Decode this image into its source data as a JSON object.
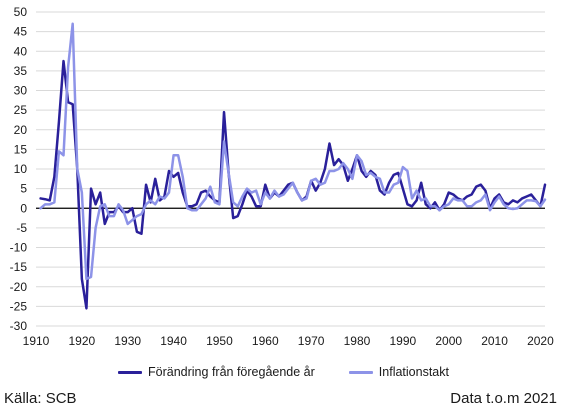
{
  "chart_data": {
    "type": "line",
    "title": "",
    "xlabel": "",
    "ylabel": "",
    "xlim": [
      1910,
      2021
    ],
    "ylim": [
      -30,
      50
    ],
    "x_ticks": [
      1910,
      1920,
      1930,
      1940,
      1950,
      1960,
      1970,
      1980,
      1990,
      2000,
      2010,
      2020
    ],
    "y_ticks": [
      50,
      45,
      40,
      35,
      30,
      25,
      20,
      15,
      10,
      5,
      0,
      -5,
      -10,
      -15,
      -20,
      -25,
      -30
    ],
    "grid": "horizontal",
    "legend_position": "bottom",
    "series": [
      {
        "name": "Förändring från föregående år",
        "color": "#2a209a",
        "points": [
          [
            1911,
            2.5
          ],
          [
            1912,
            2.3
          ],
          [
            1913,
            2
          ],
          [
            1914,
            8
          ],
          [
            1915,
            22
          ],
          [
            1916,
            37.5
          ],
          [
            1917,
            27
          ],
          [
            1918,
            26.5
          ],
          [
            1919,
            10
          ],
          [
            1920,
            -18
          ],
          [
            1921,
            -25.5
          ],
          [
            1922,
            5
          ],
          [
            1923,
            1
          ],
          [
            1924,
            4
          ],
          [
            1925,
            -4
          ],
          [
            1926,
            -1
          ],
          [
            1927,
            -1
          ],
          [
            1928,
            0.5
          ],
          [
            1929,
            -1
          ],
          [
            1930,
            -1
          ],
          [
            1931,
            0
          ],
          [
            1932,
            -6
          ],
          [
            1933,
            -6.5
          ],
          [
            1934,
            6
          ],
          [
            1935,
            1.5
          ],
          [
            1936,
            7.5
          ],
          [
            1937,
            2
          ],
          [
            1938,
            3
          ],
          [
            1939,
            9.5
          ],
          [
            1940,
            8
          ],
          [
            1941,
            9
          ],
          [
            1942,
            4
          ],
          [
            1943,
            0.5
          ],
          [
            1944,
            0.5
          ],
          [
            1945,
            1
          ],
          [
            1946,
            4
          ],
          [
            1947,
            4.5
          ],
          [
            1948,
            3
          ],
          [
            1949,
            2
          ],
          [
            1950,
            1.5
          ],
          [
            1951,
            24.5
          ],
          [
            1952,
            9
          ],
          [
            1953,
            -2.5
          ],
          [
            1954,
            -2
          ],
          [
            1955,
            1
          ],
          [
            1956,
            4.5
          ],
          [
            1957,
            3
          ],
          [
            1958,
            0.5
          ],
          [
            1959,
            0.5
          ],
          [
            1960,
            6
          ],
          [
            1961,
            2.5
          ],
          [
            1962,
            4
          ],
          [
            1963,
            3
          ],
          [
            1964,
            4.5
          ],
          [
            1965,
            6
          ],
          [
            1966,
            6.5
          ],
          [
            1967,
            4
          ],
          [
            1968,
            2
          ],
          [
            1969,
            3
          ],
          [
            1970,
            7
          ],
          [
            1971,
            4.5
          ],
          [
            1972,
            6.5
          ],
          [
            1973,
            10
          ],
          [
            1974,
            16.5
          ],
          [
            1975,
            11
          ],
          [
            1976,
            12.5
          ],
          [
            1977,
            11
          ],
          [
            1978,
            7
          ],
          [
            1979,
            10
          ],
          [
            1980,
            13.5
          ],
          [
            1981,
            9.5
          ],
          [
            1982,
            8
          ],
          [
            1983,
            9.5
          ],
          [
            1984,
            8.5
          ],
          [
            1985,
            4.5
          ],
          [
            1986,
            3.5
          ],
          [
            1987,
            6.5
          ],
          [
            1988,
            8.5
          ],
          [
            1989,
            9
          ],
          [
            1990,
            5
          ],
          [
            1991,
            1
          ],
          [
            1992,
            0.5
          ],
          [
            1993,
            2
          ],
          [
            1994,
            6.5
          ],
          [
            1995,
            1
          ],
          [
            1996,
            0
          ],
          [
            1997,
            1.5
          ],
          [
            1998,
            -0.5
          ],
          [
            1999,
            1
          ],
          [
            2000,
            4
          ],
          [
            2001,
            3.5
          ],
          [
            2002,
            2.5
          ],
          [
            2003,
            2
          ],
          [
            2004,
            3
          ],
          [
            2005,
            3.5
          ],
          [
            2006,
            5.5
          ],
          [
            2007,
            6
          ],
          [
            2008,
            4.5
          ],
          [
            2009,
            0
          ],
          [
            2010,
            2.5
          ],
          [
            2011,
            3.5
          ],
          [
            2012,
            1.5
          ],
          [
            2013,
            1
          ],
          [
            2014,
            2
          ],
          [
            2015,
            1.5
          ],
          [
            2016,
            2.5
          ],
          [
            2017,
            3
          ],
          [
            2018,
            3.5
          ],
          [
            2019,
            2
          ],
          [
            2020,
            0.5
          ],
          [
            2021,
            6
          ]
        ]
      },
      {
        "name": "Inflationstakt",
        "color": "#8d93e8",
        "points": [
          [
            1911,
            0
          ],
          [
            1912,
            1
          ],
          [
            1913,
            1
          ],
          [
            1914,
            1.5
          ],
          [
            1915,
            14.5
          ],
          [
            1916,
            13.5
          ],
          [
            1917,
            36
          ],
          [
            1918,
            47
          ],
          [
            1919,
            10
          ],
          [
            1920,
            4
          ],
          [
            1921,
            -18
          ],
          [
            1922,
            -17.5
          ],
          [
            1923,
            -5
          ],
          [
            1924,
            0.5
          ],
          [
            1925,
            1
          ],
          [
            1926,
            -2
          ],
          [
            1927,
            -2
          ],
          [
            1928,
            1
          ],
          [
            1929,
            -0.5
          ],
          [
            1930,
            -4
          ],
          [
            1931,
            -3
          ],
          [
            1932,
            -2
          ],
          [
            1933,
            -1.5
          ],
          [
            1934,
            1
          ],
          [
            1935,
            2
          ],
          [
            1936,
            1
          ],
          [
            1937,
            3
          ],
          [
            1938,
            2.5
          ],
          [
            1939,
            4
          ],
          [
            1940,
            13.5
          ],
          [
            1941,
            13.5
          ],
          [
            1942,
            8
          ],
          [
            1943,
            0
          ],
          [
            1944,
            -0.5
          ],
          [
            1945,
            -0.5
          ],
          [
            1946,
            1
          ],
          [
            1947,
            2.5
          ],
          [
            1948,
            5.5
          ],
          [
            1949,
            1.5
          ],
          [
            1950,
            1
          ],
          [
            1951,
            17
          ],
          [
            1952,
            9
          ],
          [
            1953,
            1.5
          ],
          [
            1954,
            0.5
          ],
          [
            1955,
            3
          ],
          [
            1956,
            5
          ],
          [
            1957,
            4
          ],
          [
            1958,
            4.5
          ],
          [
            1959,
            1
          ],
          [
            1960,
            4
          ],
          [
            1961,
            2.5
          ],
          [
            1962,
            4.5
          ],
          [
            1963,
            3
          ],
          [
            1964,
            3.5
          ],
          [
            1965,
            5
          ],
          [
            1966,
            6.5
          ],
          [
            1967,
            4
          ],
          [
            1968,
            2
          ],
          [
            1969,
            2.5
          ],
          [
            1970,
            7
          ],
          [
            1971,
            7.5
          ],
          [
            1972,
            6
          ],
          [
            1973,
            6.5
          ],
          [
            1974,
            9.5
          ],
          [
            1975,
            9.5
          ],
          [
            1976,
            10
          ],
          [
            1977,
            11.5
          ],
          [
            1978,
            10
          ],
          [
            1979,
            7.5
          ],
          [
            1980,
            13.5
          ],
          [
            1981,
            12
          ],
          [
            1982,
            8.5
          ],
          [
            1983,
            9
          ],
          [
            1984,
            8
          ],
          [
            1985,
            7.5
          ],
          [
            1986,
            4
          ],
          [
            1987,
            4
          ],
          [
            1988,
            6
          ],
          [
            1989,
            6.5
          ],
          [
            1990,
            10.5
          ],
          [
            1991,
            9.5
          ],
          [
            1992,
            2.5
          ],
          [
            1993,
            4.5
          ],
          [
            1994,
            2
          ],
          [
            1995,
            2.5
          ],
          [
            1996,
            0.5
          ],
          [
            1997,
            0.5
          ],
          [
            1998,
            -0.5
          ],
          [
            1999,
            0.5
          ],
          [
            2000,
            1
          ],
          [
            2001,
            2.5
          ],
          [
            2002,
            2
          ],
          [
            2003,
            2
          ],
          [
            2004,
            0.5
          ],
          [
            2005,
            0.5
          ],
          [
            2006,
            1.5
          ],
          [
            2007,
            2
          ],
          [
            2008,
            3.5
          ],
          [
            2009,
            -0.5
          ],
          [
            2010,
            1.5
          ],
          [
            2011,
            3
          ],
          [
            2012,
            1
          ],
          [
            2013,
            0
          ],
          [
            2014,
            -0.2
          ],
          [
            2015,
            0
          ],
          [
            2016,
            1
          ],
          [
            2017,
            2
          ],
          [
            2018,
            2
          ],
          [
            2019,
            1.8
          ],
          [
            2020,
            0.5
          ],
          [
            2021,
            2.2
          ]
        ]
      }
    ]
  },
  "footer": {
    "source": "Källa: SCB",
    "data_through": "Data t.o.m 2021"
  }
}
